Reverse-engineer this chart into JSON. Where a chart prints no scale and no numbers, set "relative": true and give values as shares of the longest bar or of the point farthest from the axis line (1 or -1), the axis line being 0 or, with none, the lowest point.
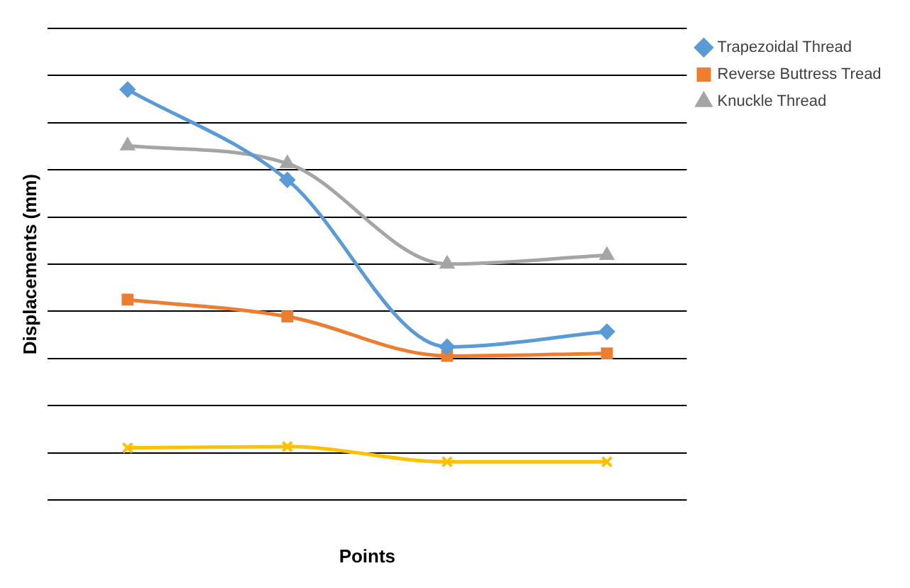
{
  "chart_data": {
    "type": "line",
    "xlabel": "Points",
    "ylabel": "Displacements (mm)",
    "relative": true,
    "grid": "y",
    "legend": "top right",
    "line_style": "solid",
    "categories": [
      null,
      null,
      null,
      null
    ],
    "series": [
      {
        "name": "Trapezoidal Thread",
        "color": "#5b9bd5",
        "marker": "diamond",
        "values": [
          1,
          0.78,
          0.373,
          0.41
        ]
      },
      {
        "name": "Reverse Buttress Tread",
        "color": "#ed7d31",
        "marker": "square",
        "values": [
          0.488,
          0.447,
          0.351,
          0.357
        ]
      },
      {
        "name": "Knuckle Thread",
        "color": "#a5a5a5",
        "marker": "triangle",
        "values": [
          0.863,
          0.82,
          0.575,
          0.596
        ]
      },
      {
        "color": "#ffc000",
        "marker": "cross",
        "values": [
          0.127,
          0.13,
          0.093,
          0.093
        ]
      }
    ]
  }
}
